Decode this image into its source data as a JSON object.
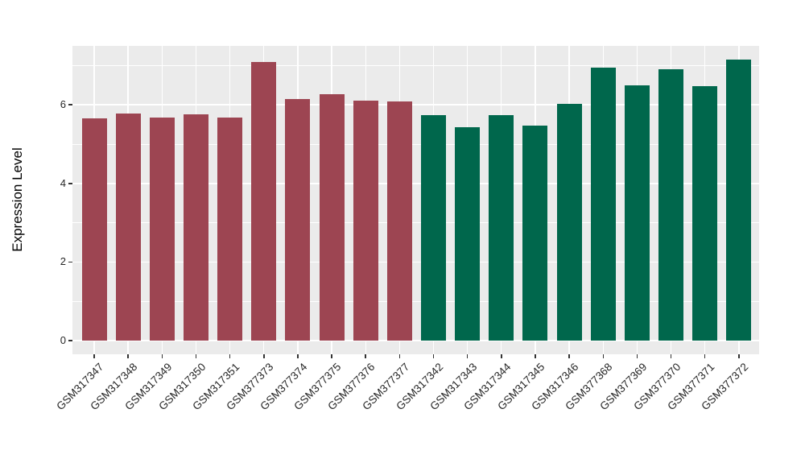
{
  "chart_data": {
    "type": "bar",
    "ylabel": "Expression Level",
    "xlabel": "",
    "ylim": [
      0,
      7.5
    ],
    "yticks": [
      0,
      2,
      4,
      6
    ],
    "yticks_minor": [
      1,
      3,
      5,
      7
    ],
    "grid": "on",
    "legend": "none",
    "panel_background": "#ebebeb",
    "grid_color": "#ffffff",
    "axis_text_color": "#262626",
    "tick_color": "#333333",
    "group_colors": {
      "group1": "#9d4552",
      "group2": "#00674c"
    },
    "categories": [
      "GSM317347",
      "GSM317348",
      "GSM317349",
      "GSM317350",
      "GSM317351",
      "GSM377373",
      "GSM377374",
      "GSM377375",
      "GSM377376",
      "GSM377377",
      "GSM317342",
      "GSM317343",
      "GSM317344",
      "GSM317345",
      "GSM317346",
      "GSM377368",
      "GSM377369",
      "GSM377370",
      "GSM377371",
      "GSM377372"
    ],
    "bars": [
      {
        "label": "GSM317347",
        "value": 5.66,
        "group": "group1"
      },
      {
        "label": "GSM317348",
        "value": 5.77,
        "group": "group1"
      },
      {
        "label": "GSM317349",
        "value": 5.68,
        "group": "group1"
      },
      {
        "label": "GSM317350",
        "value": 5.76,
        "group": "group1"
      },
      {
        "label": "GSM317351",
        "value": 5.68,
        "group": "group1"
      },
      {
        "label": "GSM377373",
        "value": 7.08,
        "group": "group1"
      },
      {
        "label": "GSM377374",
        "value": 6.15,
        "group": "group1"
      },
      {
        "label": "GSM377375",
        "value": 6.28,
        "group": "group1"
      },
      {
        "label": "GSM377376",
        "value": 6.1,
        "group": "group1"
      },
      {
        "label": "GSM377377",
        "value": 6.09,
        "group": "group1"
      },
      {
        "label": "GSM317342",
        "value": 5.74,
        "group": "group2"
      },
      {
        "label": "GSM317343",
        "value": 5.43,
        "group": "group2"
      },
      {
        "label": "GSM317344",
        "value": 5.73,
        "group": "group2"
      },
      {
        "label": "GSM317345",
        "value": 5.47,
        "group": "group2"
      },
      {
        "label": "GSM317346",
        "value": 6.03,
        "group": "group2"
      },
      {
        "label": "GSM377368",
        "value": 6.94,
        "group": "group2"
      },
      {
        "label": "GSM377369",
        "value": 6.49,
        "group": "group2"
      },
      {
        "label": "GSM377370",
        "value": 6.9,
        "group": "group2"
      },
      {
        "label": "GSM377371",
        "value": 6.47,
        "group": "group2"
      },
      {
        "label": "GSM377372",
        "value": 7.16,
        "group": "group2"
      }
    ]
  }
}
